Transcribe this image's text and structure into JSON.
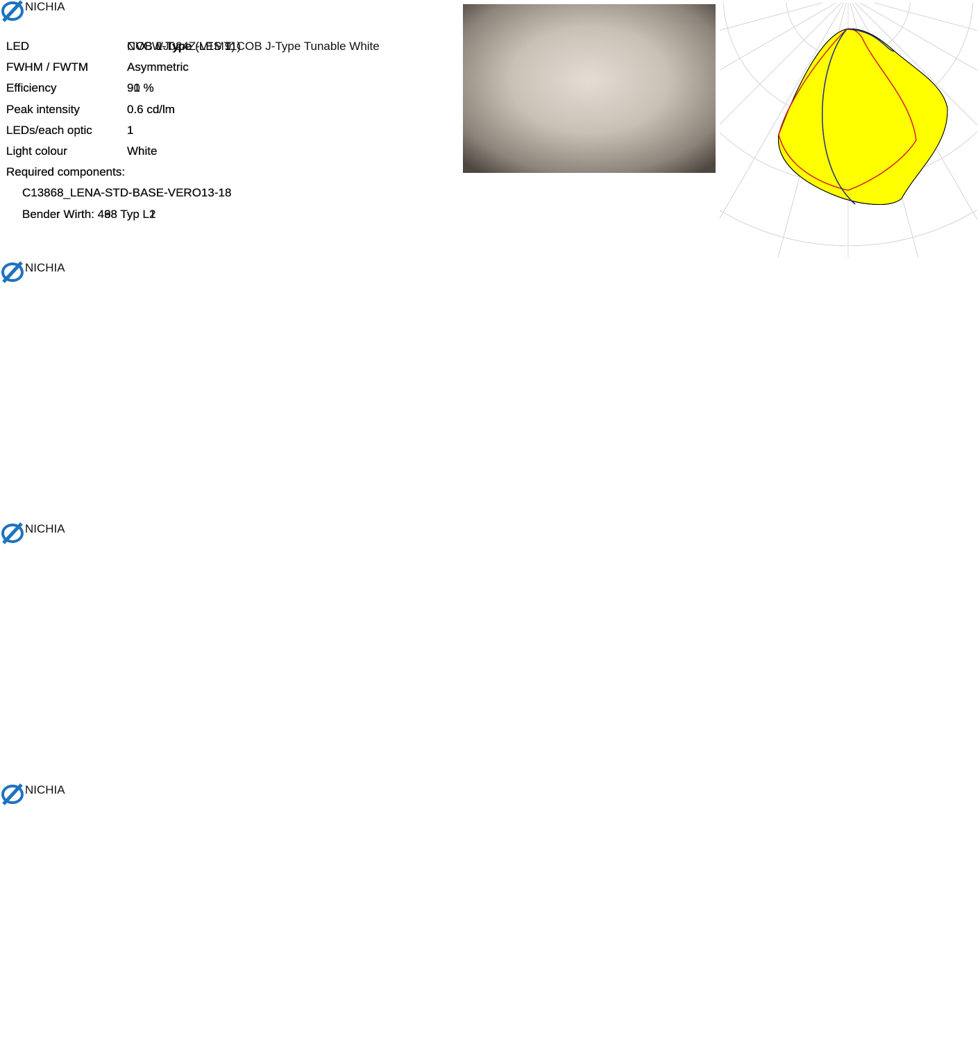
{
  "entries": [
    {
      "logo": "NICHIA",
      "fields": [
        {
          "label": "LED",
          "value": "COB J-Type"
        },
        {
          "label": "FWHM / FWTM",
          "value": "Asymmetric"
        },
        {
          "label": "Efficiency",
          "value": "91 %"
        },
        {
          "label": "Peak intensity",
          "value": "0.6 cd/lm"
        },
        {
          "label": "LEDs/each optic",
          "value": "1"
        },
        {
          "label": "Light colour",
          "value": "White"
        }
      ],
      "components_heading": "Required components:",
      "components": [
        "C13868_LENA-STD-BASE-VERO13-18",
        "Bender Wirth: 463 Typ L2"
      ]
    },
    {
      "logo": "NICHIA",
      "fields": [
        {
          "label": "LED",
          "value": "COB L-Type (LES 11)"
        },
        {
          "label": "FWHM / FWTM",
          "value": "Asymmetric"
        },
        {
          "label": "Efficiency",
          "value": "91 %"
        },
        {
          "label": "Peak intensity",
          "value": "0.6 cd/lm"
        },
        {
          "label": "LEDs/each optic",
          "value": "1"
        },
        {
          "label": "Light colour",
          "value": "White"
        }
      ],
      "components_heading": "Required components:",
      "components": [
        "C13868_LENA-STD-BASE-VERO13-18",
        "Bender Wirth: 438 Typ L1"
      ]
    },
    {
      "logo": "NICHIA",
      "fields": [
        {
          "label": "LED",
          "value": "COB L-Type (LES 9)"
        },
        {
          "label": "FWHM / FWTM",
          "value": "Asymmetric"
        },
        {
          "label": "Efficiency",
          "value": "91 %"
        },
        {
          "label": "Peak intensity",
          "value": "0.6 cd/lm"
        },
        {
          "label": "LEDs/each optic",
          "value": "1"
        },
        {
          "label": "Light colour",
          "value": "White"
        }
      ],
      "components_heading": "Required components:",
      "components": [
        "C13868_LENA-STD-BASE-VERO13-18",
        "Bender Wirth: 438 Typ L1"
      ]
    },
    {
      "logo": "NICHIA",
      "fields": [
        {
          "label": "LED",
          "value": "NVCWJ024Z-V1MT: COB J-Type Tunable White"
        },
        {
          "label": "FWHM / FWTM",
          "value": "Asymmetric"
        },
        {
          "label": "Efficiency",
          "value": "90 %"
        },
        {
          "label": "Peak intensity",
          "value": "0.6 cd/lm"
        },
        {
          "label": "LEDs/each optic",
          "value": "1"
        },
        {
          "label": "Light colour",
          "value": "White"
        }
      ],
      "components_heading": "Required components:",
      "components": [
        "C13868_LENA-STD-BASE-VERO13-18",
        "Bender Wirth: 498 Typ L2"
      ]
    }
  ]
}
